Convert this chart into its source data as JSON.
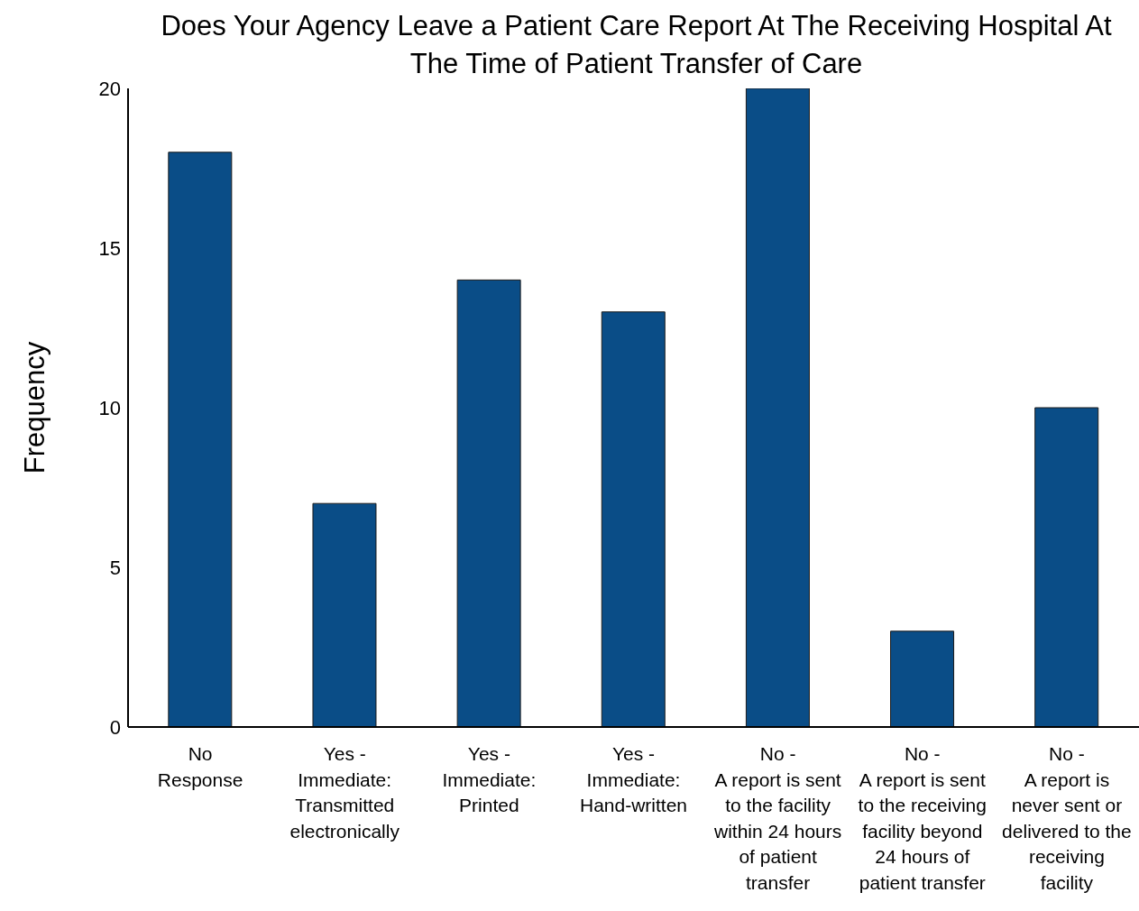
{
  "chart_data": {
    "type": "bar",
    "title": "Does Your Agency Leave a Patient Care Report At The Receiving Hospital At The Time of Patient Transfer of Care",
    "ylabel": "Frequency",
    "categories": [
      "No Response",
      "Yes - Immediate: Transmitted electronically",
      "Yes - Immediate: Printed",
      "Yes - Immediate: Hand-written",
      "No - A report is sent to the facility within 24 hours of patient transfer",
      "No - A report is sent to the receiving facility beyond 24 hours of patient transfer",
      "No - A report is never sent or delivered to the receiving facility"
    ],
    "values": [
      18,
      7,
      14,
      13,
      20,
      3,
      10
    ],
    "color": "#0a4d87",
    "ylim": [
      0,
      20
    ],
    "yticks": [
      0,
      5,
      10,
      15,
      20
    ],
    "grid": false,
    "legend": false
  }
}
